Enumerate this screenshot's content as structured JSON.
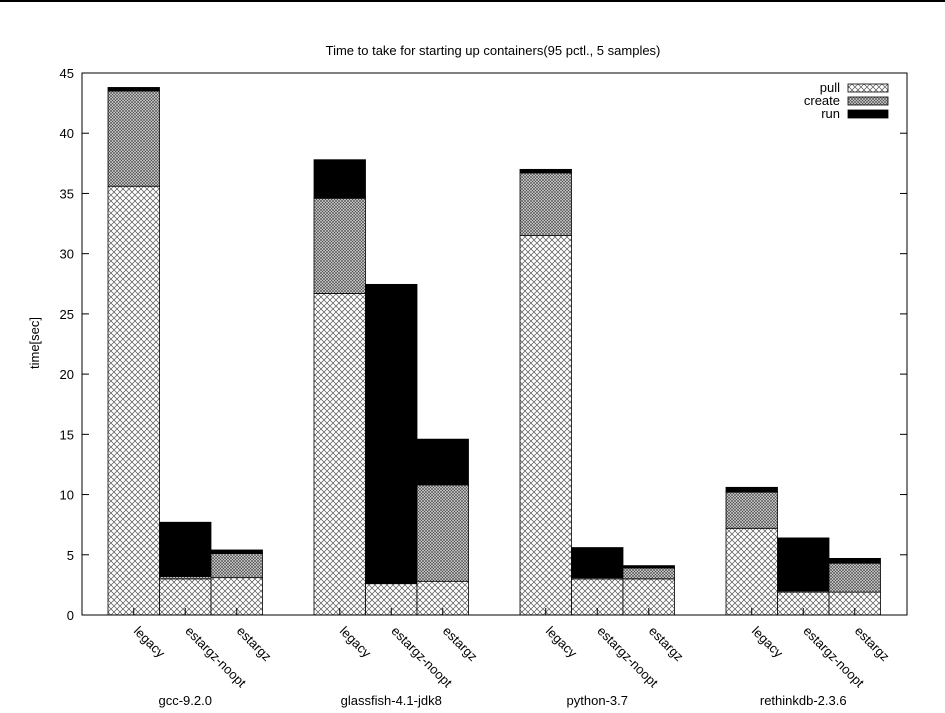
{
  "chart_data": {
    "type": "bar",
    "stacked": true,
    "title": "Time to take for starting up containers(95 pctl., 5 samples)",
    "ylabel": "time[sec]",
    "xlabel": "",
    "ylim": [
      0,
      45
    ],
    "yticks": [
      0,
      5,
      10,
      15,
      20,
      25,
      30,
      35,
      40,
      45
    ],
    "legend_position": "top-right",
    "grid": false,
    "series": [
      {
        "name": "pull",
        "pattern": "crosshatch-light",
        "values": [
          35.6,
          3.0,
          3.1,
          26.7,
          2.6,
          2.8,
          31.5,
          3.0,
          3.0,
          7.2,
          1.9,
          1.9
        ]
      },
      {
        "name": "create",
        "pattern": "crosshatch-dense",
        "values": [
          7.9,
          0.2,
          2.0,
          7.9,
          0.05,
          8.0,
          5.2,
          0.1,
          0.9,
          3.0,
          0.1,
          2.4
        ]
      },
      {
        "name": "run",
        "pattern": "solid-black",
        "values": [
          0.3,
          4.5,
          0.3,
          3.2,
          24.8,
          3.8,
          0.3,
          2.5,
          0.2,
          0.4,
          4.4,
          0.4
        ]
      }
    ],
    "groups": [
      {
        "label": "gcc-9.2.0",
        "bars": [
          "legacy",
          "estargz-noopt",
          "estargz"
        ]
      },
      {
        "label": "glassfish-4.1-jdk8",
        "bars": [
          "legacy",
          "estargz-noopt",
          "estargz"
        ]
      },
      {
        "label": "python-3.7",
        "bars": [
          "legacy",
          "estargz-noopt",
          "estargz"
        ]
      },
      {
        "label": "rethinkdb-2.3.6",
        "bars": [
          "legacy",
          "estargz-noopt",
          "estargz"
        ]
      }
    ]
  }
}
